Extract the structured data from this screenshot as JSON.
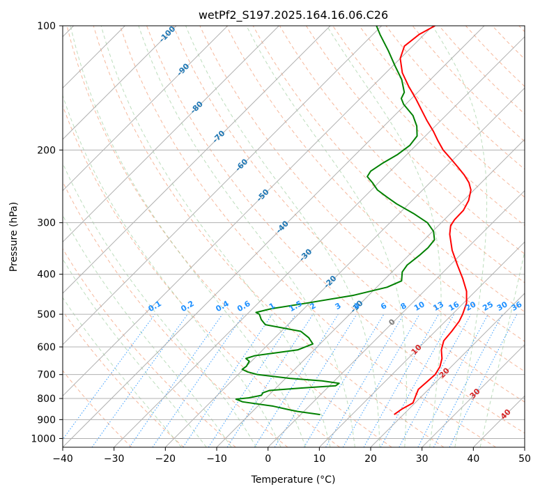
{
  "chart_data": {
    "type": "line",
    "title": "wetPf2_S197.2025.164.16.06.C26",
    "xlabel": "Temperature (°C)",
    "ylabel": "Pressure (hPa)",
    "xlim": [
      -40,
      50
    ],
    "ylim": [
      1050,
      100
    ],
    "y_scale": "log",
    "skew": "skew-T log-p",
    "grid": true,
    "x_ticks": [
      "−40",
      "−30",
      "−20",
      "−10",
      "0",
      "10",
      "20",
      "30",
      "40",
      "50"
    ],
    "x_tick_values": [
      -40,
      -30,
      -20,
      -10,
      0,
      10,
      20,
      30,
      40,
      50
    ],
    "y_ticks": [
      "100",
      "200",
      "300",
      "400",
      "500",
      "600",
      "700",
      "800",
      "900",
      "1000"
    ],
    "y_tick_values": [
      100,
      200,
      300,
      400,
      500,
      600,
      700,
      800,
      900,
      1000
    ],
    "series": [
      {
        "role": "temperature",
        "color": "#ff0000",
        "points": [
          [
            875,
            18.2
          ],
          [
            850,
            18.6
          ],
          [
            820,
            19.6
          ],
          [
            790,
            18.8
          ],
          [
            760,
            18.0
          ],
          [
            730,
            18.2
          ],
          [
            700,
            18.4
          ],
          [
            670,
            17.8
          ],
          [
            640,
            16.6
          ],
          [
            610,
            14.8
          ],
          [
            580,
            13.5
          ],
          [
            550,
            13.2
          ],
          [
            520,
            12.7
          ],
          [
            500,
            12.0
          ],
          [
            470,
            10.6
          ],
          [
            440,
            8.3
          ],
          [
            410,
            5.1
          ],
          [
            380,
            1.4
          ],
          [
            350,
            -2.5
          ],
          [
            320,
            -6.1
          ],
          [
            305,
            -7.6
          ],
          [
            295,
            -8.0
          ],
          [
            280,
            -8.1
          ],
          [
            265,
            -9.0
          ],
          [
            250,
            -10.6
          ],
          [
            240,
            -12.4
          ],
          [
            230,
            -14.8
          ],
          [
            220,
            -17.6
          ],
          [
            210,
            -20.6
          ],
          [
            200,
            -23.8
          ],
          [
            190,
            -26.6
          ],
          [
            180,
            -29.4
          ],
          [
            170,
            -32.6
          ],
          [
            160,
            -35.8
          ],
          [
            150,
            -39.2
          ],
          [
            140,
            -43.0
          ],
          [
            130,
            -46.8
          ],
          [
            120,
            -50.0
          ],
          [
            112,
            -51.6
          ],
          [
            105,
            -51.0
          ],
          [
            100,
            -49.6
          ]
        ]
      },
      {
        "role": "dewpoint",
        "color": "#008000",
        "points": [
          [
            875,
            3.8
          ],
          [
            860,
            -1.2
          ],
          [
            850,
            -3.6
          ],
          [
            835,
            -7.0
          ],
          [
            815,
            -13.8
          ],
          [
            803,
            -15.6
          ],
          [
            797,
            -13.4
          ],
          [
            786,
            -11.4
          ],
          [
            775,
            -11.6
          ],
          [
            765,
            -10.8
          ],
          [
            755,
            -5.2
          ],
          [
            745,
            1.2
          ],
          [
            735,
            1.4
          ],
          [
            725,
            -2.4
          ],
          [
            715,
            -9.2
          ],
          [
            700,
            -16.2
          ],
          [
            690,
            -18.6
          ],
          [
            680,
            -20.2
          ],
          [
            668,
            -20.0
          ],
          [
            650,
            -20.4
          ],
          [
            640,
            -21.6
          ],
          [
            630,
            -20.4
          ],
          [
            610,
            -13.2
          ],
          [
            590,
            -11.4
          ],
          [
            570,
            -13.4
          ],
          [
            550,
            -16.2
          ],
          [
            530,
            -24.4
          ],
          [
            515,
            -26.2
          ],
          [
            500,
            -27.6
          ],
          [
            495,
            -28.6
          ],
          [
            485,
            -26.4
          ],
          [
            470,
            -20.6
          ],
          [
            450,
            -13.0
          ],
          [
            430,
            -8.0
          ],
          [
            415,
            -6.4
          ],
          [
            395,
            -8.0
          ],
          [
            380,
            -8.4
          ],
          [
            360,
            -7.9
          ],
          [
            345,
            -7.7
          ],
          [
            330,
            -8.0
          ],
          [
            315,
            -9.8
          ],
          [
            300,
            -12.7
          ],
          [
            285,
            -17.2
          ],
          [
            270,
            -22.4
          ],
          [
            260,
            -25.6
          ],
          [
            250,
            -28.8
          ],
          [
            240,
            -31.2
          ],
          [
            232,
            -33.4
          ],
          [
            225,
            -33.8
          ],
          [
            215,
            -33.0
          ],
          [
            205,
            -31.8
          ],
          [
            195,
            -31.2
          ],
          [
            185,
            -31.6
          ],
          [
            175,
            -33.6
          ],
          [
            165,
            -36.4
          ],
          [
            155,
            -40.4
          ],
          [
            150,
            -42.0
          ],
          [
            145,
            -42.6
          ],
          [
            135,
            -45.6
          ],
          [
            125,
            -49.6
          ],
          [
            115,
            -53.8
          ],
          [
            105,
            -58.6
          ],
          [
            100,
            -61.0
          ]
        ]
      }
    ],
    "isotherm_labels": {
      "color": "#1f77b4",
      "pressure_hPa": 500,
      "values": [
        "-100",
        "-90",
        "-80",
        "-70",
        "-60",
        "-50",
        "-40",
        "-30",
        "-20",
        "-10"
      ]
    },
    "mixing_ratio_labels": {
      "color": "#1e90ff",
      "pressure_hPa": 500,
      "values": [
        "0.1",
        "0.2",
        "0.4",
        "0.6",
        "1",
        "1.5",
        "2",
        "3",
        "4",
        "6",
        "8",
        "10",
        "13",
        "16",
        "20",
        "25",
        "30",
        "36"
      ]
    },
    "dry_adiabat_labels": {
      "color": "#d62728",
      "values": [
        "10",
        "20",
        "30",
        "40"
      ]
    },
    "moist_adiabat_labels": {
      "color": "#808080",
      "values": [
        "0"
      ]
    }
  }
}
